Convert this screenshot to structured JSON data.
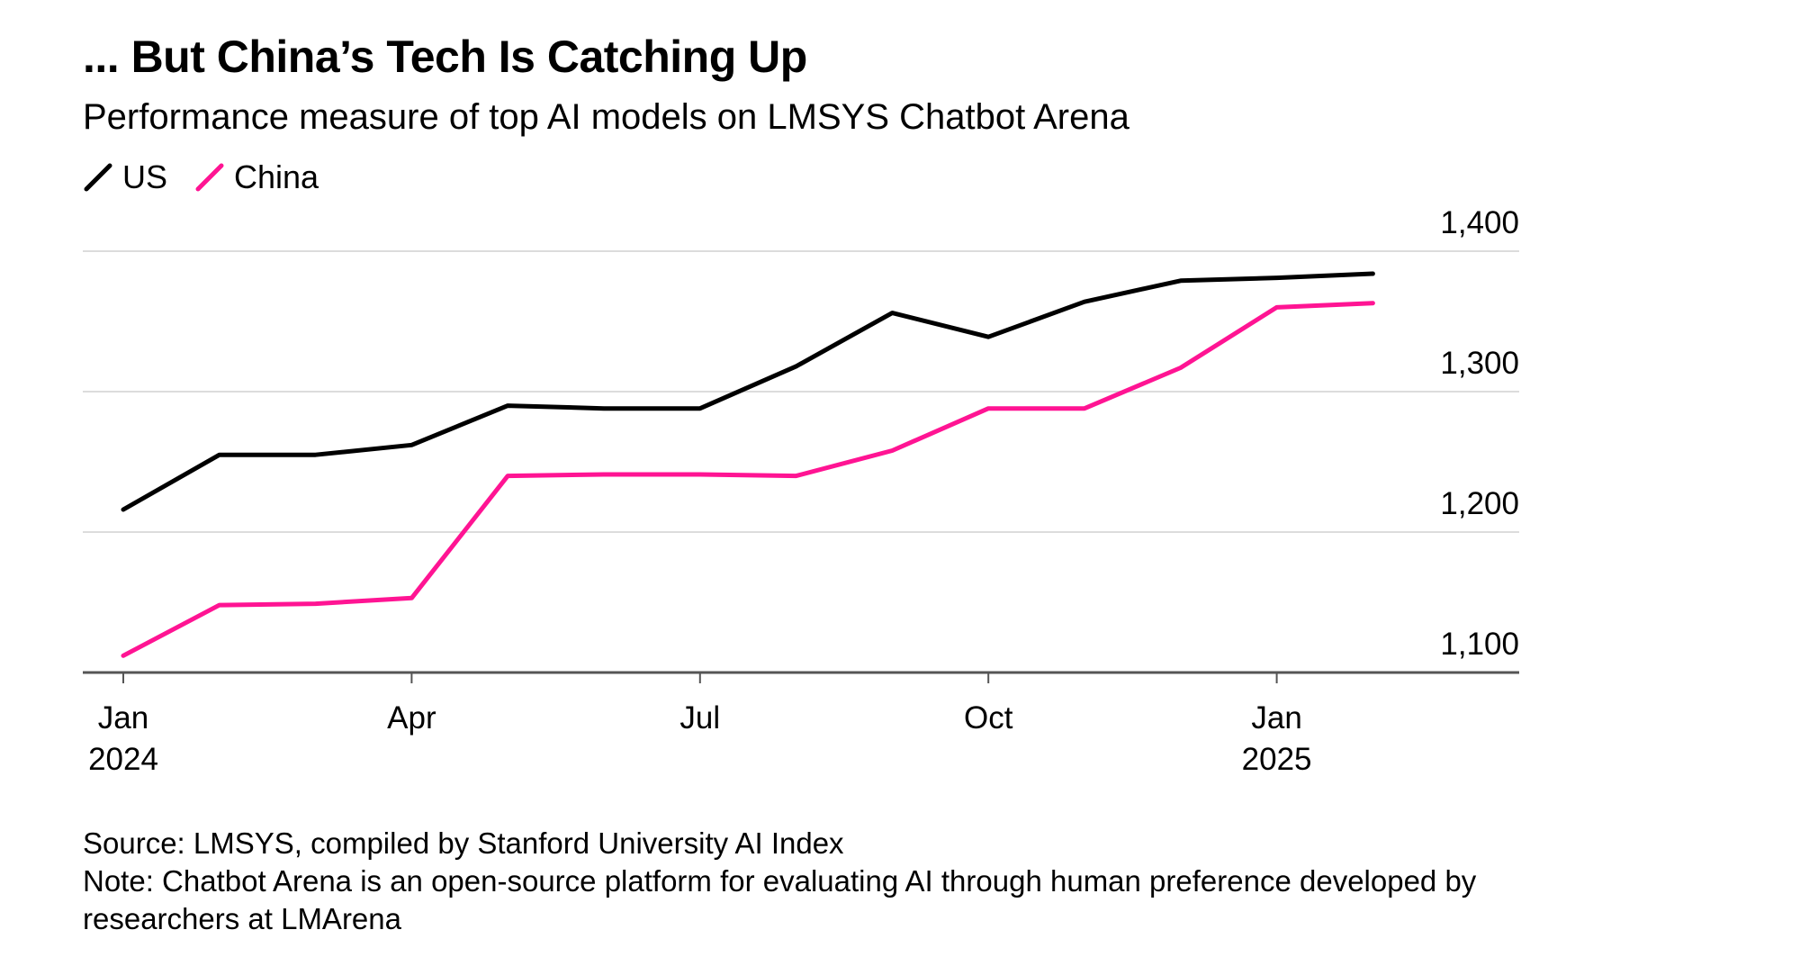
{
  "chart_data": {
    "type": "line",
    "title": "... But China’s Tech Is Catching Up",
    "subtitle": "Performance measure of top AI models on LMSYS Chatbot Arena",
    "xlabel": "",
    "ylabel": "",
    "x": [
      "2024-01",
      "2024-02",
      "2024-03",
      "2024-04",
      "2024-05",
      "2024-06",
      "2024-07",
      "2024-08",
      "2024-09",
      "2024-10",
      "2024-11",
      "2024-12",
      "2025-01",
      "2025-02"
    ],
    "ylim": [
      1100,
      1400
    ],
    "yticks": [
      {
        "value": 1100,
        "label": "1,100"
      },
      {
        "value": 1200,
        "label": "1,200"
      },
      {
        "value": 1300,
        "label": "1,300"
      },
      {
        "value": 1400,
        "label": "1,400"
      }
    ],
    "xticks": [
      {
        "month": "2024-01",
        "label": "Jan",
        "sublabel": "2024"
      },
      {
        "month": "2024-04",
        "label": "Apr",
        "sublabel": ""
      },
      {
        "month": "2024-07",
        "label": "Jul",
        "sublabel": ""
      },
      {
        "month": "2024-10",
        "label": "Oct",
        "sublabel": ""
      },
      {
        "month": "2025-01",
        "label": "Jan",
        "sublabel": "2025"
      }
    ],
    "series": [
      {
        "name": "US",
        "color": "#000000",
        "values": [
          1216,
          1255,
          1255,
          1262,
          1290,
          1288,
          1288,
          1318,
          1356,
          1339,
          1364,
          1379,
          1381,
          1384
        ]
      },
      {
        "name": "China",
        "color": "#ff1493",
        "values": [
          1112,
          1148,
          1149,
          1153,
          1240,
          1241,
          1241,
          1240,
          1258,
          1288,
          1288,
          1317,
          1360,
          1363
        ]
      }
    ],
    "grid": true,
    "legend_position": "top-left"
  },
  "footer": {
    "source": "Source: LMSYS, compiled by Stanford University AI Index",
    "note": "Note: Chatbot Arena is an open-source platform for evaluating AI through human preference developed by researchers at LMArena"
  }
}
